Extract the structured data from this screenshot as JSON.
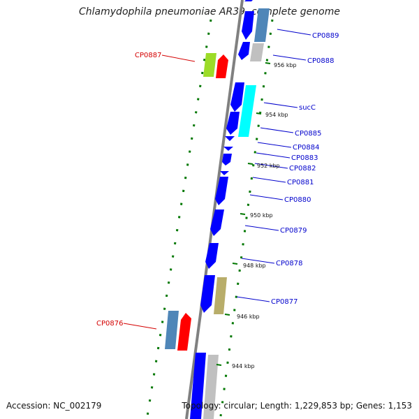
{
  "title": "Chlamydophila pneumoniae AR39, complete genome",
  "accession": "Accession: NC_002179",
  "footer_info": "Topology: circular; Length: 1,229,853 bp; Genes: 1,153",
  "colors": {
    "backbone": "#808080",
    "forward_gene": "#0000ff",
    "red_gene": "#ff0000",
    "steelblue_gene": "#4f86b8",
    "cyan_gene": "#00ffff",
    "khaki_gene": "#b8ad6a",
    "lime_gene": "#9cdc28",
    "gray_gene": "#c0c0c0",
    "tick": "#007700",
    "blue_text": "#0000cc",
    "red_text": "#d40000"
  },
  "gene_labels": [
    {
      "id": "cp0889",
      "text": "CP0889",
      "color": "blue"
    },
    {
      "id": "cp0888",
      "text": "CP0888",
      "color": "blue"
    },
    {
      "id": "cp0887",
      "text": "CP0887",
      "color": "red"
    },
    {
      "id": "succ",
      "text": "sucC",
      "color": "blue"
    },
    {
      "id": "cp0885",
      "text": "CP0885",
      "color": "blue"
    },
    {
      "id": "cp0884",
      "text": "CP0884",
      "color": "blue"
    },
    {
      "id": "cp0883",
      "text": "CP0883",
      "color": "blue"
    },
    {
      "id": "cp0882",
      "text": "CP0882",
      "color": "blue"
    },
    {
      "id": "cp0881",
      "text": "CP0881",
      "color": "blue"
    },
    {
      "id": "cp0880",
      "text": "CP0880",
      "color": "blue"
    },
    {
      "id": "cp0879",
      "text": "CP0879",
      "color": "blue"
    },
    {
      "id": "cp0878",
      "text": "CP0878",
      "color": "blue"
    },
    {
      "id": "cp0877",
      "text": "CP0877",
      "color": "blue"
    },
    {
      "id": "cp0876",
      "text": "CP0876",
      "color": "red"
    }
  ],
  "kbp_labels": [
    "956 kbp",
    "954 kbp",
    "952 kbp",
    "950 kbp",
    "948 kbp",
    "946 kbp",
    "944 kbp"
  ]
}
